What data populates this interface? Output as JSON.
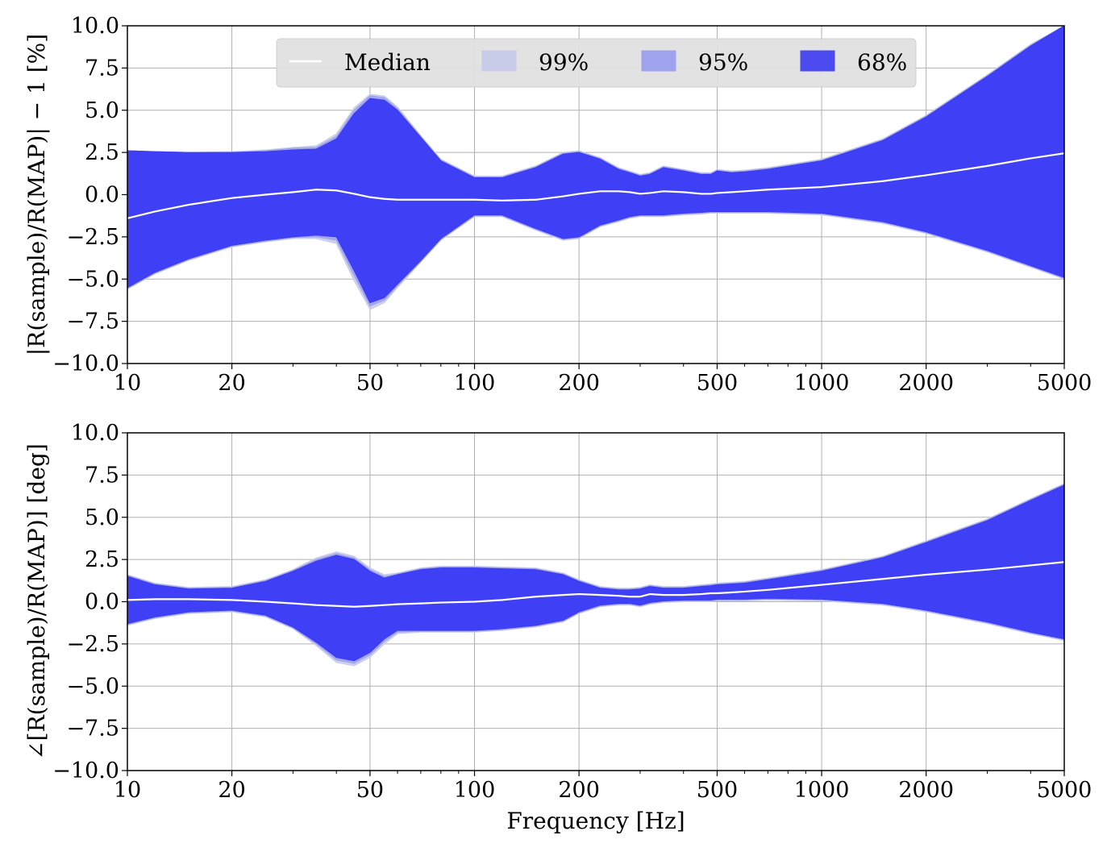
{
  "chart_data": [
    {
      "type": "area",
      "title": "",
      "xlabel": "",
      "ylabel": "|R(sample)/R(MAP)| − 1 [%]",
      "xscale": "log",
      "xlim": [
        10,
        5000
      ],
      "ylim": [
        -10.0,
        10.0
      ],
      "grid": true,
      "xticks": [
        "10",
        "20",
        "50",
        "100",
        "200",
        "500",
        "1000",
        "2000",
        "5000"
      ],
      "yticks": [
        "10.0",
        "7.5",
        "5.0",
        "2.5",
        "0.0",
        "−2.5",
        "−5.0",
        "−7.5",
        "−10.0"
      ],
      "legend": {
        "placement": "top-center",
        "entries": [
          {
            "label": "Median",
            "color": "#ffffff"
          },
          {
            "label": "99%",
            "color": "#c8cce8"
          },
          {
            "label": "95%",
            "color": "#9fa3ee"
          },
          {
            "label": "68%",
            "color": "#4b4bf0"
          }
        ]
      },
      "x": [
        10,
        12,
        15,
        20,
        25,
        30,
        35,
        40,
        45,
        50,
        55,
        60,
        70,
        80,
        100,
        120,
        150,
        180,
        200,
        230,
        260,
        280,
        300,
        320,
        350,
        400,
        450,
        480,
        500,
        550,
        600,
        700,
        1000,
        1500,
        2000,
        3000,
        4000,
        5000
      ],
      "series": [
        {
          "name": "Median",
          "values": [
            -1.4,
            -1.0,
            -0.6,
            -0.2,
            0.0,
            0.15,
            0.3,
            0.25,
            0.05,
            -0.15,
            -0.25,
            -0.3,
            -0.3,
            -0.3,
            -0.3,
            -0.35,
            -0.3,
            -0.1,
            0.05,
            0.2,
            0.2,
            0.15,
            0.05,
            0.1,
            0.2,
            0.15,
            0.05,
            0.05,
            0.1,
            0.15,
            0.2,
            0.3,
            0.45,
            0.8,
            1.15,
            1.7,
            2.15,
            2.45
          ]
        },
        {
          "name": "68%",
          "upper": [
            2.6,
            2.55,
            2.5,
            2.5,
            2.55,
            2.65,
            2.7,
            3.3,
            4.8,
            5.7,
            5.6,
            5.0,
            3.4,
            2.0,
            1.0,
            1.0,
            1.6,
            2.4,
            2.5,
            2.1,
            1.5,
            1.3,
            1.1,
            1.2,
            1.6,
            1.4,
            1.2,
            1.2,
            1.4,
            1.3,
            1.35,
            1.5,
            2.0,
            3.2,
            4.6,
            7.0,
            8.8,
            10.0
          ],
          "lower": [
            -5.5,
            -4.6,
            -3.8,
            -3.0,
            -2.7,
            -2.5,
            -2.4,
            -2.5,
            -4.5,
            -6.4,
            -6.1,
            -5.3,
            -3.9,
            -2.6,
            -1.2,
            -1.2,
            -2.0,
            -2.6,
            -2.5,
            -1.8,
            -1.5,
            -1.3,
            -1.2,
            -1.2,
            -1.2,
            -1.1,
            -1.05,
            -1.0,
            -1.0,
            -1.0,
            -1.0,
            -1.0,
            -1.1,
            -1.6,
            -2.2,
            -3.3,
            -4.2,
            -4.9
          ]
        },
        {
          "name": "95%",
          "upper": [
            2.6,
            2.55,
            2.5,
            2.5,
            2.6,
            2.75,
            2.8,
            3.45,
            5.0,
            5.85,
            5.75,
            5.1,
            3.45,
            2.05,
            1.05,
            1.05,
            1.65,
            2.45,
            2.55,
            2.15,
            1.55,
            1.35,
            1.15,
            1.25,
            1.65,
            1.45,
            1.25,
            1.25,
            1.45,
            1.35,
            1.4,
            1.55,
            2.05,
            3.25,
            4.65,
            7.05,
            8.85,
            10.0
          ],
          "lower": [
            -5.55,
            -4.65,
            -3.85,
            -3.05,
            -2.75,
            -2.55,
            -2.5,
            -2.7,
            -4.8,
            -6.6,
            -6.25,
            -5.4,
            -3.95,
            -2.65,
            -1.25,
            -1.25,
            -2.05,
            -2.65,
            -2.55,
            -1.85,
            -1.55,
            -1.35,
            -1.25,
            -1.25,
            -1.25,
            -1.15,
            -1.1,
            -1.05,
            -1.05,
            -1.05,
            -1.05,
            -1.05,
            -1.15,
            -1.65,
            -2.25,
            -3.35,
            -4.25,
            -4.95
          ]
        },
        {
          "name": "99%",
          "upper": [
            2.6,
            2.55,
            2.5,
            2.55,
            2.65,
            2.8,
            2.9,
            3.6,
            5.15,
            5.95,
            5.85,
            5.2,
            3.5,
            2.1,
            1.1,
            1.1,
            1.7,
            2.5,
            2.6,
            2.2,
            1.6,
            1.4,
            1.2,
            1.3,
            1.7,
            1.5,
            1.3,
            1.3,
            1.5,
            1.4,
            1.45,
            1.6,
            2.1,
            3.3,
            4.7,
            7.1,
            8.9,
            10.0
          ],
          "lower": [
            -5.6,
            -4.7,
            -3.9,
            -3.1,
            -2.8,
            -2.6,
            -2.6,
            -2.9,
            -5.1,
            -6.8,
            -6.4,
            -5.5,
            -4.0,
            -2.7,
            -1.3,
            -1.3,
            -2.1,
            -2.7,
            -2.6,
            -1.9,
            -1.6,
            -1.4,
            -1.3,
            -1.3,
            -1.3,
            -1.2,
            -1.15,
            -1.1,
            -1.1,
            -1.1,
            -1.1,
            -1.1,
            -1.2,
            -1.7,
            -2.3,
            -3.4,
            -4.3,
            -5.0
          ]
        }
      ]
    },
    {
      "type": "area",
      "title": "",
      "xlabel": "Frequency [Hz]",
      "ylabel": "∠[R(sample)/R(MAP)] [deg]",
      "xscale": "log",
      "xlim": [
        10,
        5000
      ],
      "ylim": [
        -10.0,
        10.0
      ],
      "grid": true,
      "xticks": [
        "10",
        "20",
        "50",
        "100",
        "200",
        "500",
        "1000",
        "2000",
        "5000"
      ],
      "yticks": [
        "10.0",
        "7.5",
        "5.0",
        "2.5",
        "0.0",
        "−2.5",
        "−5.0",
        "−7.5",
        "−10.0"
      ],
      "x": [
        10,
        12,
        15,
        20,
        25,
        30,
        35,
        40,
        45,
        50,
        55,
        60,
        70,
        80,
        100,
        120,
        150,
        180,
        200,
        230,
        260,
        280,
        300,
        320,
        350,
        400,
        450,
        480,
        500,
        550,
        600,
        700,
        1000,
        1500,
        2000,
        3000,
        4000,
        5000
      ],
      "series": [
        {
          "name": "Median",
          "values": [
            0.1,
            0.15,
            0.15,
            0.1,
            0.0,
            -0.1,
            -0.2,
            -0.25,
            -0.3,
            -0.25,
            -0.2,
            -0.15,
            -0.1,
            -0.05,
            0.0,
            0.1,
            0.3,
            0.4,
            0.45,
            0.4,
            0.35,
            0.3,
            0.3,
            0.45,
            0.4,
            0.4,
            0.45,
            0.5,
            0.5,
            0.55,
            0.6,
            0.7,
            1.0,
            1.35,
            1.6,
            1.9,
            2.15,
            2.35
          ]
        },
        {
          "name": "68%",
          "upper": [
            1.5,
            1.0,
            0.75,
            0.8,
            1.2,
            1.8,
            2.4,
            2.75,
            2.5,
            1.8,
            1.4,
            1.6,
            1.9,
            2.0,
            2.0,
            1.95,
            1.9,
            1.6,
            1.2,
            0.8,
            0.7,
            0.7,
            0.75,
            0.9,
            0.8,
            0.8,
            0.9,
            0.95,
            1.0,
            1.05,
            1.1,
            1.3,
            1.8,
            2.6,
            3.5,
            4.8,
            6.0,
            6.9
          ],
          "lower": [
            -1.3,
            -0.9,
            -0.6,
            -0.5,
            -0.8,
            -1.5,
            -2.4,
            -3.3,
            -3.5,
            -3.0,
            -2.2,
            -1.7,
            -1.7,
            -1.7,
            -1.7,
            -1.6,
            -1.4,
            -1.1,
            -0.6,
            -0.2,
            -0.1,
            -0.1,
            -0.2,
            -0.05,
            0.05,
            0.1,
            0.1,
            0.1,
            0.15,
            0.15,
            0.15,
            0.2,
            0.15,
            -0.1,
            -0.5,
            -1.2,
            -1.8,
            -2.2
          ]
        },
        {
          "name": "95%",
          "upper": [
            1.55,
            1.05,
            0.8,
            0.85,
            1.25,
            1.85,
            2.5,
            2.85,
            2.6,
            1.9,
            1.5,
            1.65,
            1.95,
            2.05,
            2.05,
            2.0,
            1.95,
            1.65,
            1.25,
            0.85,
            0.75,
            0.75,
            0.8,
            0.95,
            0.85,
            0.85,
            0.95,
            1.0,
            1.05,
            1.1,
            1.15,
            1.35,
            1.85,
            2.65,
            3.55,
            4.85,
            6.05,
            6.95
          ],
          "lower": [
            -1.35,
            -0.95,
            -0.65,
            -0.55,
            -0.85,
            -1.55,
            -2.5,
            -3.45,
            -3.65,
            -3.15,
            -2.35,
            -1.8,
            -1.75,
            -1.75,
            -1.75,
            -1.65,
            -1.45,
            -1.15,
            -0.65,
            -0.25,
            -0.15,
            -0.15,
            -0.25,
            -0.1,
            0.0,
            0.05,
            0.05,
            0.05,
            0.1,
            0.1,
            0.1,
            0.15,
            0.1,
            -0.15,
            -0.55,
            -1.25,
            -1.85,
            -2.25
          ]
        },
        {
          "name": "99%",
          "upper": [
            1.6,
            1.1,
            0.85,
            0.9,
            1.3,
            1.9,
            2.6,
            2.95,
            2.7,
            2.0,
            1.6,
            1.7,
            2.0,
            2.1,
            2.1,
            2.05,
            2.0,
            1.7,
            1.3,
            0.9,
            0.8,
            0.8,
            0.85,
            1.0,
            0.9,
            0.9,
            1.0,
            1.05,
            1.1,
            1.15,
            1.2,
            1.4,
            1.9,
            2.7,
            3.6,
            4.9,
            6.1,
            7.0
          ],
          "lower": [
            -1.4,
            -1.0,
            -0.7,
            -0.6,
            -0.9,
            -1.6,
            -2.6,
            -3.6,
            -3.8,
            -3.3,
            -2.5,
            -1.9,
            -1.8,
            -1.8,
            -1.8,
            -1.7,
            -1.5,
            -1.2,
            -0.7,
            -0.3,
            -0.2,
            -0.2,
            -0.3,
            -0.15,
            -0.05,
            0.0,
            0.0,
            0.0,
            0.05,
            0.05,
            0.05,
            0.1,
            0.05,
            -0.2,
            -0.6,
            -1.3,
            -1.9,
            -2.3
          ]
        }
      ]
    }
  ]
}
